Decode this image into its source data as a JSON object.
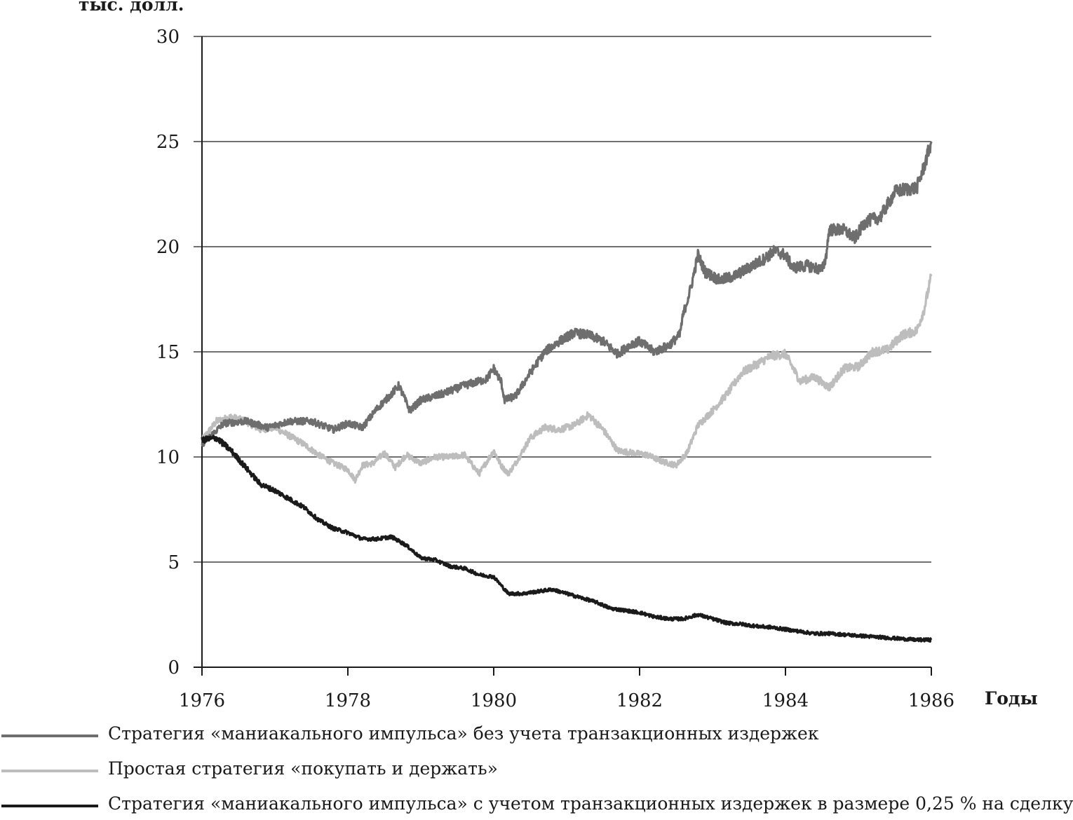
{
  "chart_data": {
    "type": "line",
    "ylabel": "тыс. долл.",
    "xlabel": "Годы",
    "xlim": [
      1976,
      1986
    ],
    "ylim": [
      0,
      30
    ],
    "x_ticks": [
      "1976",
      "1978",
      "1980",
      "1982",
      "1984",
      "1986"
    ],
    "y_ticks": [
      "0",
      "5",
      "10",
      "15",
      "20",
      "25",
      "30"
    ],
    "grid": "horizontal",
    "legend_position": "bottom",
    "series": [
      {
        "name": "Стратегия «маниакального импульса» без учета транзакционных издержек",
        "color": "#6e6e6e",
        "points": [
          [
            1976.0,
            10.6
          ],
          [
            1976.3,
            11.6
          ],
          [
            1976.6,
            11.7
          ],
          [
            1976.9,
            11.4
          ],
          [
            1977.2,
            11.7
          ],
          [
            1977.5,
            11.7
          ],
          [
            1977.8,
            11.3
          ],
          [
            1978.0,
            11.6
          ],
          [
            1978.2,
            11.4
          ],
          [
            1978.4,
            12.3
          ],
          [
            1978.6,
            13.0
          ],
          [
            1978.7,
            13.4
          ],
          [
            1978.85,
            12.2
          ],
          [
            1979.0,
            12.7
          ],
          [
            1979.3,
            13.0
          ],
          [
            1979.6,
            13.4
          ],
          [
            1979.9,
            13.7
          ],
          [
            1980.0,
            14.2
          ],
          [
            1980.1,
            13.6
          ],
          [
            1980.15,
            12.7
          ],
          [
            1980.3,
            12.9
          ],
          [
            1980.5,
            14.0
          ],
          [
            1980.7,
            15.0
          ],
          [
            1980.9,
            15.5
          ],
          [
            1981.1,
            15.9
          ],
          [
            1981.3,
            15.8
          ],
          [
            1981.5,
            15.5
          ],
          [
            1981.7,
            14.9
          ],
          [
            1981.9,
            15.4
          ],
          [
            1982.0,
            15.5
          ],
          [
            1982.2,
            15.0
          ],
          [
            1982.4,
            15.3
          ],
          [
            1982.55,
            15.8
          ],
          [
            1982.6,
            16.8
          ],
          [
            1982.7,
            18.0
          ],
          [
            1982.8,
            19.6
          ],
          [
            1982.9,
            18.8
          ],
          [
            1983.1,
            18.4
          ],
          [
            1983.3,
            18.6
          ],
          [
            1983.5,
            19.0
          ],
          [
            1983.7,
            19.4
          ],
          [
            1983.85,
            19.8
          ],
          [
            1984.0,
            19.6
          ],
          [
            1984.1,
            19.0
          ],
          [
            1984.3,
            19.1
          ],
          [
            1984.5,
            18.9
          ],
          [
            1984.55,
            19.4
          ],
          [
            1984.6,
            20.8
          ],
          [
            1984.8,
            20.8
          ],
          [
            1984.95,
            20.4
          ],
          [
            1985.1,
            21.2
          ],
          [
            1985.3,
            21.4
          ],
          [
            1985.5,
            22.6
          ],
          [
            1985.6,
            22.7
          ],
          [
            1985.8,
            22.8
          ],
          [
            1985.9,
            23.8
          ],
          [
            1986.0,
            25.0
          ]
        ]
      },
      {
        "name": "Простая стратегия «покупать и держать»",
        "color": "#bdbdbd",
        "points": [
          [
            1976.0,
            10.8
          ],
          [
            1976.2,
            11.7
          ],
          [
            1976.4,
            11.9
          ],
          [
            1976.6,
            11.7
          ],
          [
            1976.8,
            11.3
          ],
          [
            1977.0,
            11.4
          ],
          [
            1977.2,
            11.0
          ],
          [
            1977.4,
            10.6
          ],
          [
            1977.6,
            10.1
          ],
          [
            1977.8,
            9.7
          ],
          [
            1978.0,
            9.4
          ],
          [
            1978.1,
            8.9
          ],
          [
            1978.2,
            9.6
          ],
          [
            1978.35,
            9.7
          ],
          [
            1978.5,
            10.2
          ],
          [
            1978.65,
            9.5
          ],
          [
            1978.8,
            10.1
          ],
          [
            1979.0,
            9.7
          ],
          [
            1979.2,
            10.0
          ],
          [
            1979.4,
            10.0
          ],
          [
            1979.6,
            10.1
          ],
          [
            1979.8,
            9.2
          ],
          [
            1980.0,
            10.3
          ],
          [
            1980.1,
            9.6
          ],
          [
            1980.2,
            9.2
          ],
          [
            1980.3,
            9.7
          ],
          [
            1980.5,
            10.9
          ],
          [
            1980.7,
            11.4
          ],
          [
            1980.9,
            11.3
          ],
          [
            1981.1,
            11.5
          ],
          [
            1981.3,
            12.0
          ],
          [
            1981.5,
            11.3
          ],
          [
            1981.7,
            10.3
          ],
          [
            1981.9,
            10.2
          ],
          [
            1982.1,
            10.1
          ],
          [
            1982.3,
            9.8
          ],
          [
            1982.5,
            9.6
          ],
          [
            1982.65,
            10.2
          ],
          [
            1982.8,
            11.5
          ],
          [
            1983.0,
            12.2
          ],
          [
            1983.2,
            13.0
          ],
          [
            1983.4,
            14.0
          ],
          [
            1983.6,
            14.4
          ],
          [
            1983.8,
            14.8
          ],
          [
            1984.0,
            14.9
          ],
          [
            1984.2,
            13.6
          ],
          [
            1984.4,
            13.8
          ],
          [
            1984.6,
            13.3
          ],
          [
            1984.8,
            14.2
          ],
          [
            1985.0,
            14.3
          ],
          [
            1985.2,
            15.0
          ],
          [
            1985.4,
            15.1
          ],
          [
            1985.6,
            15.8
          ],
          [
            1985.8,
            16.0
          ],
          [
            1985.9,
            17.0
          ],
          [
            1986.0,
            18.6
          ]
        ]
      },
      {
        "name": "Стратегия «маниакального импульса» с учетом транзакционных издержек в размере 0,25 % на сделку",
        "color": "#1a1a1a",
        "points": [
          [
            1976.0,
            10.8
          ],
          [
            1976.2,
            10.9
          ],
          [
            1976.4,
            10.3
          ],
          [
            1976.6,
            9.5
          ],
          [
            1976.8,
            8.7
          ],
          [
            1977.0,
            8.4
          ],
          [
            1977.2,
            8.0
          ],
          [
            1977.4,
            7.6
          ],
          [
            1977.6,
            7.0
          ],
          [
            1977.8,
            6.6
          ],
          [
            1978.0,
            6.4
          ],
          [
            1978.2,
            6.1
          ],
          [
            1978.4,
            6.1
          ],
          [
            1978.6,
            6.2
          ],
          [
            1978.8,
            5.8
          ],
          [
            1979.0,
            5.2
          ],
          [
            1979.2,
            5.1
          ],
          [
            1979.4,
            4.8
          ],
          [
            1979.6,
            4.7
          ],
          [
            1979.8,
            4.4
          ],
          [
            1980.0,
            4.3
          ],
          [
            1980.1,
            3.9
          ],
          [
            1980.2,
            3.5
          ],
          [
            1980.4,
            3.5
          ],
          [
            1980.6,
            3.6
          ],
          [
            1980.8,
            3.7
          ],
          [
            1981.0,
            3.5
          ],
          [
            1981.2,
            3.3
          ],
          [
            1981.4,
            3.1
          ],
          [
            1981.6,
            2.8
          ],
          [
            1981.8,
            2.7
          ],
          [
            1982.0,
            2.6
          ],
          [
            1982.2,
            2.4
          ],
          [
            1982.4,
            2.3
          ],
          [
            1982.6,
            2.3
          ],
          [
            1982.8,
            2.5
          ],
          [
            1983.0,
            2.3
          ],
          [
            1983.2,
            2.1
          ],
          [
            1983.4,
            2.05
          ],
          [
            1983.6,
            1.95
          ],
          [
            1983.8,
            1.9
          ],
          [
            1984.0,
            1.8
          ],
          [
            1984.2,
            1.7
          ],
          [
            1984.4,
            1.6
          ],
          [
            1984.6,
            1.6
          ],
          [
            1984.8,
            1.55
          ],
          [
            1985.0,
            1.5
          ],
          [
            1985.2,
            1.45
          ],
          [
            1985.4,
            1.4
          ],
          [
            1985.6,
            1.35
          ],
          [
            1985.8,
            1.3
          ],
          [
            1986.0,
            1.3
          ]
        ]
      }
    ]
  }
}
